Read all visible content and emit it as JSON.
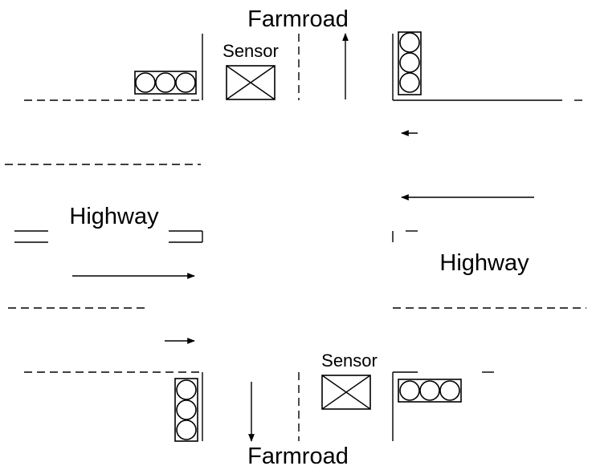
{
  "labels": {
    "farmroad_north": "Farmroad",
    "farmroad_south": "Farmroad",
    "highway_west": "Highway",
    "highway_east": "Highway",
    "sensor_north": "Sensor",
    "sensor_south": "Sensor"
  },
  "icons": {
    "traffic_light": "traffic-light-icon",
    "sensor": "sensor-icon",
    "arrow": "arrow-icon"
  },
  "colors": {
    "line": "#000000",
    "background": "#ffffff"
  }
}
